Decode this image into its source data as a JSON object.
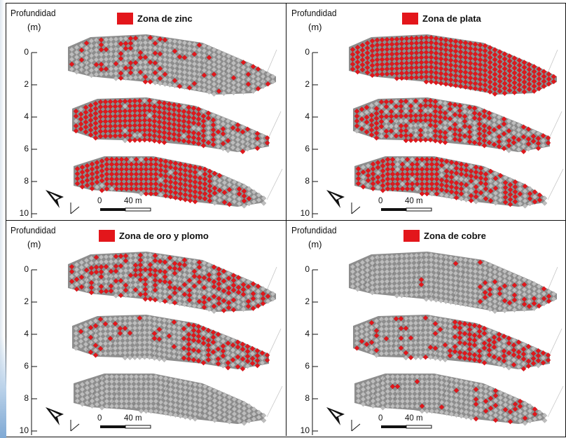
{
  "colors": {
    "mineralized": "#e3161b",
    "host_rock": "#bdbdbd",
    "line": "#111111"
  },
  "panels": [
    {
      "legend": "Zona de zinc",
      "depth_label": "Profundidad",
      "unit": "(m)",
      "ticks": [
        "0",
        "2",
        "4",
        "6",
        "8",
        "10"
      ],
      "scale_zero": "0",
      "scale_length": "40 m",
      "slab_red_fraction": [
        0.35,
        0.78,
        0.85
      ]
    },
    {
      "legend": "Zona de plata",
      "depth_label": "Profundidad",
      "unit": "(m)",
      "ticks": [
        "0",
        "2",
        "4",
        "6",
        "8",
        "10"
      ],
      "scale_zero": "0",
      "scale_length": "40 m",
      "slab_red_fraction": [
        0.92,
        0.72,
        0.8
      ]
    },
    {
      "legend": "Zona de oro y plomo",
      "depth_label": "Profundidad",
      "unit": "(m)",
      "ticks": [
        "0",
        "2",
        "4",
        "6",
        "8",
        "10"
      ],
      "scale_zero": "0",
      "scale_length": "40 m",
      "slab_red_fraction": [
        0.6,
        0.45,
        0.0
      ]
    },
    {
      "legend": "Zona de cobre",
      "depth_label": "Profundidad",
      "unit": "(m)",
      "ticks": [
        "0",
        "2",
        "4",
        "6",
        "8",
        "10"
      ],
      "scale_zero": "0",
      "scale_length": "40 m",
      "slab_red_fraction": [
        0.15,
        0.5,
        0.15
      ]
    }
  ]
}
